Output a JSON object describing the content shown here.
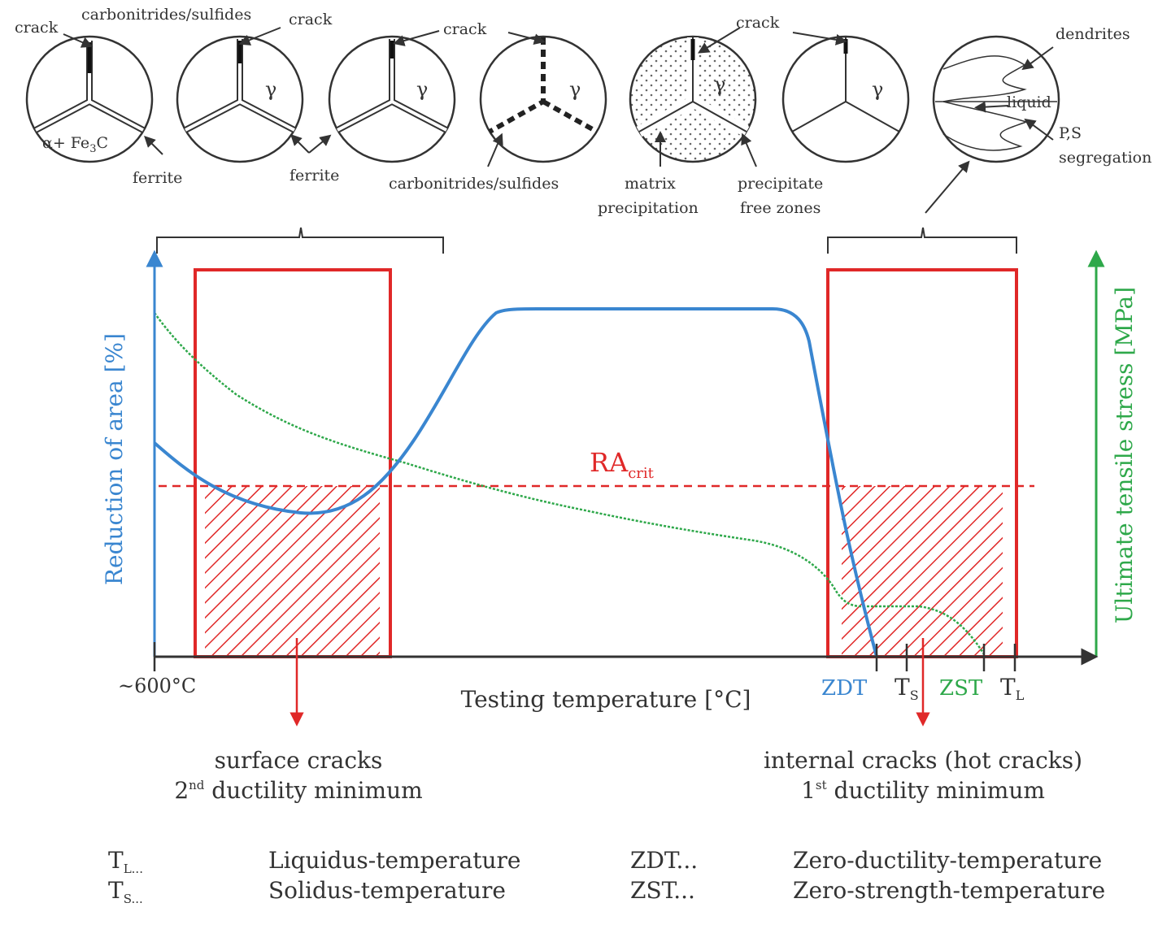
{
  "micro": {
    "c1_crack": "crack",
    "c1_phase": "α+ Fe",
    "c1_phase_sub": "3",
    "c1_phase_end": "C",
    "c1_ferrite": "ferrite",
    "c2_carbo": "carbonitrides/sulfides",
    "c2_crack": "crack",
    "c2_gamma": "γ",
    "c2_ferrite": "ferrite",
    "c3_crack": "crack",
    "c3_gamma": "γ",
    "c4_gamma": "γ",
    "c4_carbo": "carbonitrides/sulfides",
    "c5_crack": "crack",
    "c5_gamma": "γ",
    "c5_matrix1": "matrix",
    "c5_matrix2": "precipitation",
    "c5_pfz1": "precipitate",
    "c5_pfz2": "free zones",
    "c6_gamma": "γ",
    "c7_dendrites": "dendrites",
    "c7_liquid": "liquid",
    "c7_ps1": "P,S",
    "c7_ps2": "segregation"
  },
  "axes": {
    "ylabel_left": "Reduction of area [%]",
    "ylabel_right": "Ultimate tensile stress [MPa]",
    "xlabel": "Testing temperature [°C]",
    "x_start": "~600°C",
    "ra_main": "RA",
    "ra_sub": "crit"
  },
  "ticks": {
    "zdt": "ZDT",
    "ts_main": "T",
    "ts_sub": "S",
    "zst": "ZST",
    "tl_main": "T",
    "tl_sub": "L"
  },
  "zones": {
    "surface_title": "surface cracks",
    "surface_ord_main": "2",
    "surface_ord_sup": "nd",
    "surface_rest": " ductility minimum",
    "internal_title": "internal cracks (hot cracks)",
    "internal_ord_main": "1",
    "internal_ord_sup": "st",
    "internal_rest": " ductility minimum"
  },
  "legend": {
    "tl_abbr_main": "T",
    "tl_abbr_sub": "L",
    "tl_abbr_dots": "...",
    "tl_def": "Liquidus-temperature",
    "ts_abbr_main": "T",
    "ts_abbr_sub": "S",
    "ts_abbr_dots": "...",
    "ts_def": "Solidus-temperature",
    "zdt_abbr": "ZDT...",
    "zdt_def": "Zero-ductility-temperature",
    "zst_abbr": "ZST...",
    "zst_def": "Zero-strength-temperature"
  },
  "colors": {
    "ra_curve": "#3a86d0",
    "uts_curve": "#2ea84a",
    "zone": "#e02828",
    "text": "#333333"
  }
}
